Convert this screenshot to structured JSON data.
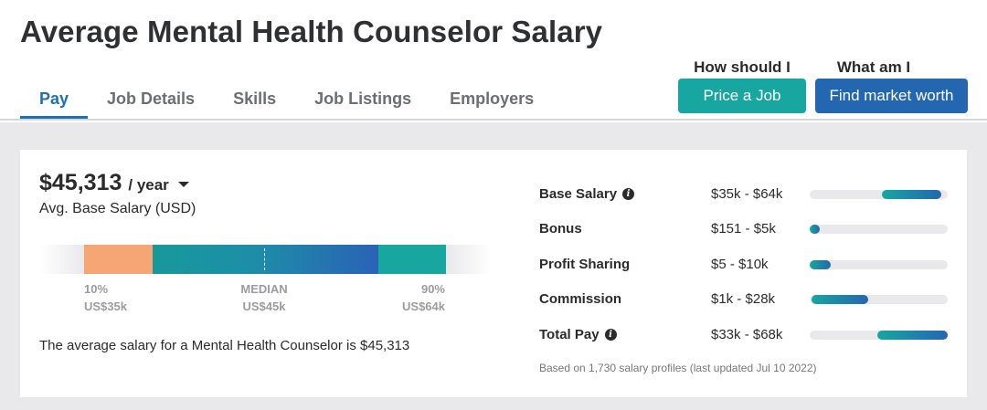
{
  "page_title": "Average Mental Health Counselor Salary",
  "tabs": [
    {
      "label": "Pay",
      "active": true
    },
    {
      "label": "Job Details",
      "active": false
    },
    {
      "label": "Skills",
      "active": false
    },
    {
      "label": "Job Listings",
      "active": false
    },
    {
      "label": "Employers",
      "active": false
    }
  ],
  "cta": {
    "pay_question": "How should I pay?",
    "price_button": "Price a Job",
    "worth_question": "What am I worth?",
    "market_button": "Find market worth"
  },
  "salary": {
    "amount": "$45,313",
    "period": "/ year",
    "subtitle": "Avg. Base Salary (USD)",
    "percentiles": {
      "low_label": "10%",
      "low_value": "US$35k",
      "mid_label": "MEDIAN",
      "mid_value": "US$45k",
      "high_label": "90%",
      "high_value": "US$64k"
    },
    "summary": "The average salary for a Mental Health Counselor is $45,313"
  },
  "breakdown": [
    {
      "label": "Base Salary",
      "info": true,
      "range": "$35k - $64k",
      "bar_start": 0.52,
      "bar_end": 0.95
    },
    {
      "label": "Bonus",
      "info": false,
      "range": "$151 - $5k",
      "bar_start": 0.0,
      "bar_end": 0.07
    },
    {
      "label": "Profit Sharing",
      "info": false,
      "range": "$5 - $10k",
      "bar_start": 0.0,
      "bar_end": 0.15
    },
    {
      "label": "Commission",
      "info": false,
      "range": "$1k - $28k",
      "bar_start": 0.01,
      "bar_end": 0.42
    },
    {
      "label": "Total Pay",
      "info": true,
      "range": "$33k - $68k",
      "bar_start": 0.49,
      "bar_end": 1.0
    }
  ],
  "footnote": "Based on 1,730 salary profiles (last updated Jul 10 2022)",
  "colors": {
    "brand_blue": "#1f6fb2",
    "teal": "#17a6a0",
    "navy_button": "#2467b1",
    "low_percentile": "#f6a574"
  },
  "icons": {
    "info": "info-icon",
    "dropdown": "caret-down-icon"
  }
}
